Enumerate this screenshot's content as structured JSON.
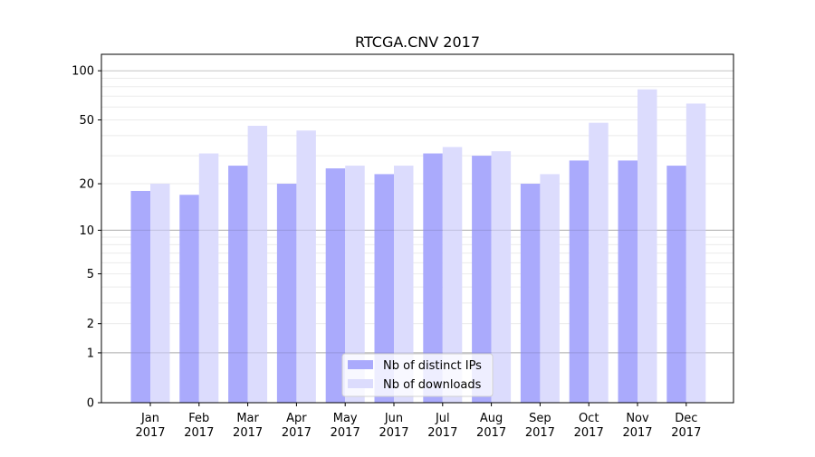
{
  "chart_data": {
    "type": "bar",
    "title": "RTCGA.CNV 2017",
    "xlabel": "",
    "ylabel": "",
    "yscale": "symlog (log10(1+y))",
    "ylim": [
      0,
      120
    ],
    "yticks": [
      0,
      1,
      2,
      5,
      10,
      20,
      50,
      100
    ],
    "grid": true,
    "legend_position": "bottom-center",
    "categories": [
      [
        "Jan",
        "2017"
      ],
      [
        "Feb",
        "2017"
      ],
      [
        "Mar",
        "2017"
      ],
      [
        "Apr",
        "2017"
      ],
      [
        "May",
        "2017"
      ],
      [
        "Jun",
        "2017"
      ],
      [
        "Jul",
        "2017"
      ],
      [
        "Aug",
        "2017"
      ],
      [
        "Sep",
        "2017"
      ],
      [
        "Oct",
        "2017"
      ],
      [
        "Nov",
        "2017"
      ],
      [
        "Dec",
        "2017"
      ]
    ],
    "series": [
      {
        "name": "Nb of distinct IPs",
        "color": "#aaaafc",
        "values": [
          18,
          17,
          26,
          20,
          25,
          23,
          31,
          30,
          20,
          28,
          28,
          26
        ]
      },
      {
        "name": "Nb of downloads",
        "color": "#dcdcfd",
        "values": [
          20,
          31,
          46,
          43,
          26,
          26,
          34,
          32,
          23,
          48,
          77,
          63
        ]
      }
    ]
  }
}
